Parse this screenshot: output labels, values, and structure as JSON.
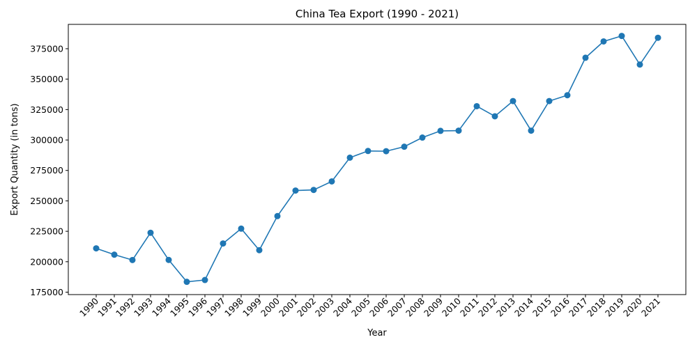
{
  "chart_data": {
    "type": "line",
    "title": "China Tea Export (1990 - 2021)",
    "xlabel": "Year",
    "ylabel": "Export Quantity (in tons)",
    "grid": false,
    "color": "#1f77b4",
    "marker": "circle",
    "ylim": [
      173000,
      395000
    ],
    "yticks": [
      175000,
      200000,
      225000,
      250000,
      275000,
      300000,
      325000,
      350000,
      375000
    ],
    "x": [
      "1990",
      "1991",
      "1992",
      "1993",
      "1994",
      "1995",
      "1996",
      "1997",
      "1998",
      "1999",
      "2000",
      "2001",
      "2002",
      "2003",
      "2004",
      "2005",
      "2006",
      "2007",
      "2008",
      "2009",
      "2010",
      "2011",
      "2012",
      "2013",
      "2014",
      "2015",
      "2016",
      "2017",
      "2018",
      "2019",
      "2020",
      "2021"
    ],
    "values": [
      211000,
      205800,
      201400,
      223800,
      201500,
      183500,
      185000,
      215000,
      227200,
      209500,
      237500,
      258500,
      259000,
      266000,
      285500,
      291000,
      290800,
      294500,
      302000,
      307500,
      307700,
      327800,
      319500,
      332000,
      307700,
      332000,
      336800,
      367600,
      381000,
      385500,
      362000,
      384000
    ]
  }
}
